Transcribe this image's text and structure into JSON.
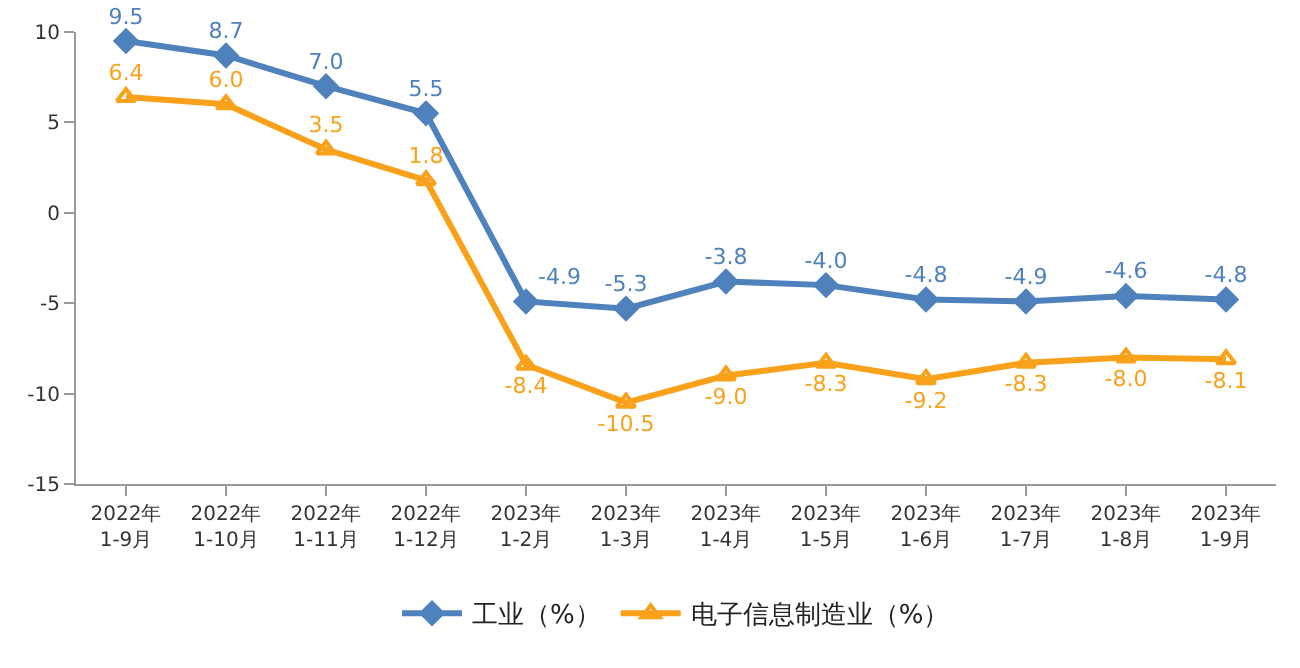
{
  "chart_data": {
    "type": "line",
    "categories": [
      "2022年\n1-9月",
      "2022年\n1-10月",
      "2022年\n1-11月",
      "2022年\n1-12月",
      "2023年\n1-2月",
      "2023年\n1-3月",
      "2023年\n1-4月",
      "2023年\n1-5月",
      "2023年\n1-6月",
      "2023年\n1-7月",
      "2023年\n1-8月",
      "2023年\n1-9月"
    ],
    "series": [
      {
        "name": "工业（%）",
        "color": "#4f81bd",
        "marker": "diamond",
        "values": [
          9.5,
          8.7,
          7.0,
          5.5,
          -4.9,
          -5.3,
          -3.8,
          -4.0,
          -4.8,
          -4.9,
          -4.6,
          -4.8
        ],
        "value_labels": [
          "9.5",
          "8.7",
          "7.0",
          "5.5",
          "-4.9",
          "-5.3",
          "-3.8",
          "-4.0",
          "-4.8",
          "-4.9",
          "-4.6",
          "-4.8"
        ]
      },
      {
        "name": "电子信息制造业（%）",
        "color": "#f9a11b",
        "marker": "triangle",
        "values": [
          6.4,
          6.0,
          3.5,
          1.8,
          -8.4,
          -10.5,
          -9.0,
          -8.3,
          -9.2,
          -8.3,
          -8.0,
          -8.1
        ],
        "value_labels": [
          "6.4",
          "6.0",
          "3.5",
          "1.8",
          "-8.4",
          "-10.5",
          "-9.0",
          "-8.3",
          "-9.2",
          "-8.3",
          "-8.0",
          "-8.1"
        ]
      }
    ],
    "ylim": [
      -15,
      10
    ],
    "yticks": [
      -15,
      -10,
      -5,
      0,
      5,
      10
    ],
    "legend": "bottom",
    "line_style": "solid"
  }
}
